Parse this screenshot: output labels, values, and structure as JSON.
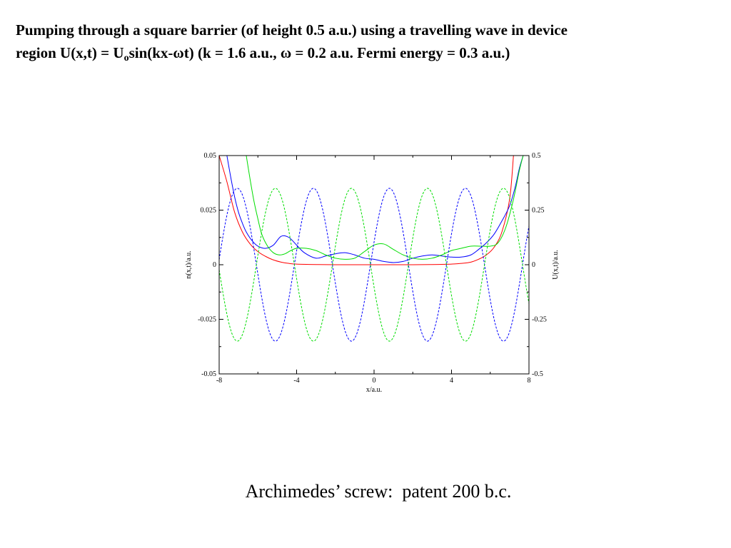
{
  "slide": {
    "title_line1": "Pumping through a square barrier (of height 0.5 a.u.) using a travelling wave in device",
    "title_line2_a": "region U(x,t) = U",
    "title_line2_sub": "o",
    "title_line2_b": "sin(kx-ωt) (k = 1.6 a.u., ω = 0.2 a.u. Fermi energy = 0.3 a.u.)",
    "caption": "Archimedes’ screw:  patent 200 b.c."
  },
  "chart_data": {
    "type": "line",
    "xlabel": "x/a.u.",
    "ylabel": "n(x,t)/a.u.",
    "y2label": "U(x,t)/a.u.",
    "xlim": [
      -8,
      8
    ],
    "ylim": [
      -0.05,
      0.05
    ],
    "y2lim": [
      -0.5,
      0.5
    ],
    "x_ticks": [
      "-8",
      "-4",
      "0",
      "4",
      "8"
    ],
    "y_ticks": [
      "-0.05",
      "-0.025",
      "0",
      "0.025",
      "0.05"
    ],
    "y2_ticks": [
      "-0.5",
      "-0.25",
      "0",
      "0.25",
      "0.5"
    ],
    "grid": false,
    "series": [
      {
        "axis": "left",
        "style": "solid",
        "color": "#ff0000",
        "x": [
          -8.0,
          -7.6,
          -7.2,
          -6.8,
          -6.4,
          -6.0,
          -5.6,
          -5.2,
          -4.8,
          -4.4,
          -4.0,
          -3.0,
          -2.0,
          0.0,
          2.0,
          3.0,
          4.0,
          4.5,
          5.0,
          5.4,
          5.8,
          6.2,
          6.6,
          7.0,
          7.2
        ],
        "y": [
          0.05,
          0.038,
          0.024,
          0.015,
          0.0095,
          0.006,
          0.0038,
          0.0022,
          0.0012,
          0.0006,
          0.0003,
          0.0001,
          0.0,
          0.0,
          0.0,
          0.0001,
          0.0003,
          0.0006,
          0.0012,
          0.0025,
          0.0045,
          0.008,
          0.015,
          0.03,
          0.05
        ]
      },
      {
        "axis": "left",
        "style": "solid",
        "color": "#0000ff",
        "x": [
          -7.6,
          -7.4,
          -7.2,
          -7.0,
          -6.8,
          -6.6,
          -6.3,
          -6.0,
          -5.6,
          -5.2,
          -4.8,
          -4.4,
          -4.0,
          -3.6,
          -3.0,
          -2.5,
          -2.0,
          -1.5,
          -1.0,
          -0.5,
          0.0,
          0.5,
          1.0,
          1.5,
          2.0,
          2.5,
          3.0,
          3.5,
          4.0,
          4.5,
          5.0,
          5.4,
          5.8,
          6.2,
          6.6,
          7.0,
          7.3,
          7.5,
          7.7
        ],
        "y": [
          0.05,
          0.04,
          0.031,
          0.024,
          0.019,
          0.015,
          0.011,
          0.0085,
          0.0075,
          0.009,
          0.013,
          0.0125,
          0.009,
          0.0055,
          0.003,
          0.004,
          0.005,
          0.0055,
          0.0045,
          0.003,
          0.0025,
          0.0015,
          0.001,
          0.0015,
          0.003,
          0.004,
          0.0045,
          0.004,
          0.0035,
          0.0035,
          0.0045,
          0.007,
          0.01,
          0.014,
          0.02,
          0.027,
          0.036,
          0.044,
          0.05
        ]
      },
      {
        "axis": "left",
        "style": "solid",
        "color": "#00dd00",
        "x": [
          -6.6,
          -6.4,
          -6.2,
          -6.0,
          -5.8,
          -5.5,
          -5.2,
          -4.9,
          -4.6,
          -4.3,
          -4.0,
          -3.5,
          -3.0,
          -2.5,
          -2.0,
          -1.5,
          -1.0,
          -0.5,
          0.0,
          0.5,
          1.0,
          1.5,
          2.0,
          2.5,
          3.0,
          3.5,
          4.0,
          4.5,
          5.0,
          5.5,
          6.0,
          6.4,
          6.8,
          7.2,
          7.5,
          7.7
        ],
        "y": [
          0.05,
          0.039,
          0.029,
          0.021,
          0.014,
          0.0085,
          0.0055,
          0.0045,
          0.005,
          0.0065,
          0.0075,
          0.0075,
          0.0065,
          0.0045,
          0.003,
          0.0025,
          0.003,
          0.006,
          0.009,
          0.0095,
          0.007,
          0.0045,
          0.003,
          0.0025,
          0.003,
          0.0045,
          0.0065,
          0.0075,
          0.0085,
          0.0085,
          0.0085,
          0.01,
          0.017,
          0.03,
          0.043,
          0.05
        ]
      },
      {
        "axis": "right",
        "style": "dashed",
        "color": "#0000ff",
        "function": "0.35*sin(1.6*x+0.3)",
        "amplitude": 0.35,
        "k": 1.6,
        "phase": 0.3
      },
      {
        "axis": "right",
        "style": "dashed",
        "color": "#00dd00",
        "function": "0.35*sin(1.6*x+3.44)",
        "amplitude": 0.35,
        "k": 1.6,
        "phase": 3.44
      }
    ]
  }
}
